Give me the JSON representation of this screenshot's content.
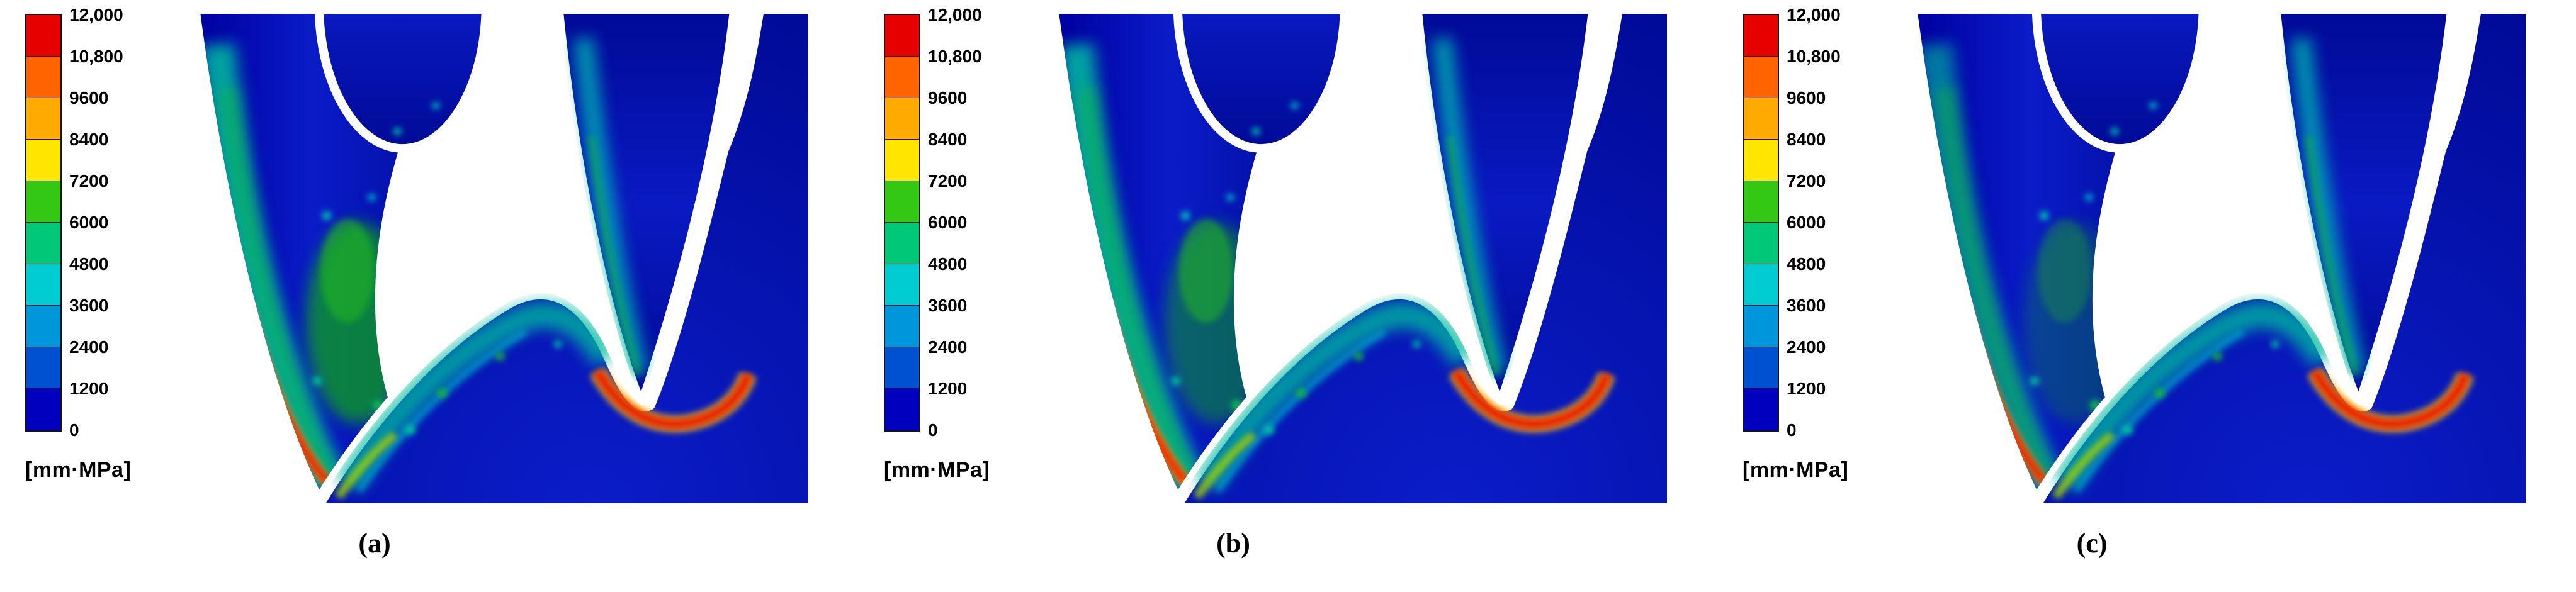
{
  "figure": {
    "unit_label": "[mm·MPa]",
    "colorbar": {
      "unit": "[mm·MPa]",
      "ticks": [
        "12,000",
        "10,800",
        "9600",
        "8400",
        "7200",
        "6000",
        "4800",
        "3600",
        "2400",
        "1200",
        "0"
      ],
      "colors": [
        "#e60000",
        "#ff6400",
        "#ffaa00",
        "#ffe600",
        "#32c814",
        "#00c878",
        "#00ccd2",
        "#0096dc",
        "#0050d2",
        "#0000be"
      ]
    },
    "panels": [
      {
        "label": "(a)"
      },
      {
        "label": "(b)"
      },
      {
        "label": "(c)"
      }
    ]
  },
  "chart_data": {
    "type": "heatmap",
    "description": "Three finite-element contour plots (a, b, c) of meshing gear tooth flanks; color scale of accumulated contact value in mm·MPa, dominant low-value dark blue with green/teal bands on flanks and red maxima along contact lines.",
    "panels": [
      "(a)",
      "(b)",
      "(c)"
    ],
    "colorbar": {
      "unit": "[mm·MPa]",
      "min": 0,
      "max": 12000,
      "step": 1200,
      "tick_values": [
        12000,
        10800,
        9600,
        8400,
        7200,
        6000,
        4800,
        3600,
        2400,
        1200,
        0
      ],
      "tick_labels": [
        "12,000",
        "10,800",
        "9600",
        "8400",
        "7200",
        "6000",
        "4800",
        "3600",
        "2400",
        "1200",
        "0"
      ],
      "band_colors_top_to_bottom": [
        "#e60000",
        "#ff6400",
        "#ffaa00",
        "#ffe600",
        "#32c814",
        "#00c878",
        "#00ccd2",
        "#0096dc",
        "#0050d2",
        "#0000be"
      ]
    }
  }
}
